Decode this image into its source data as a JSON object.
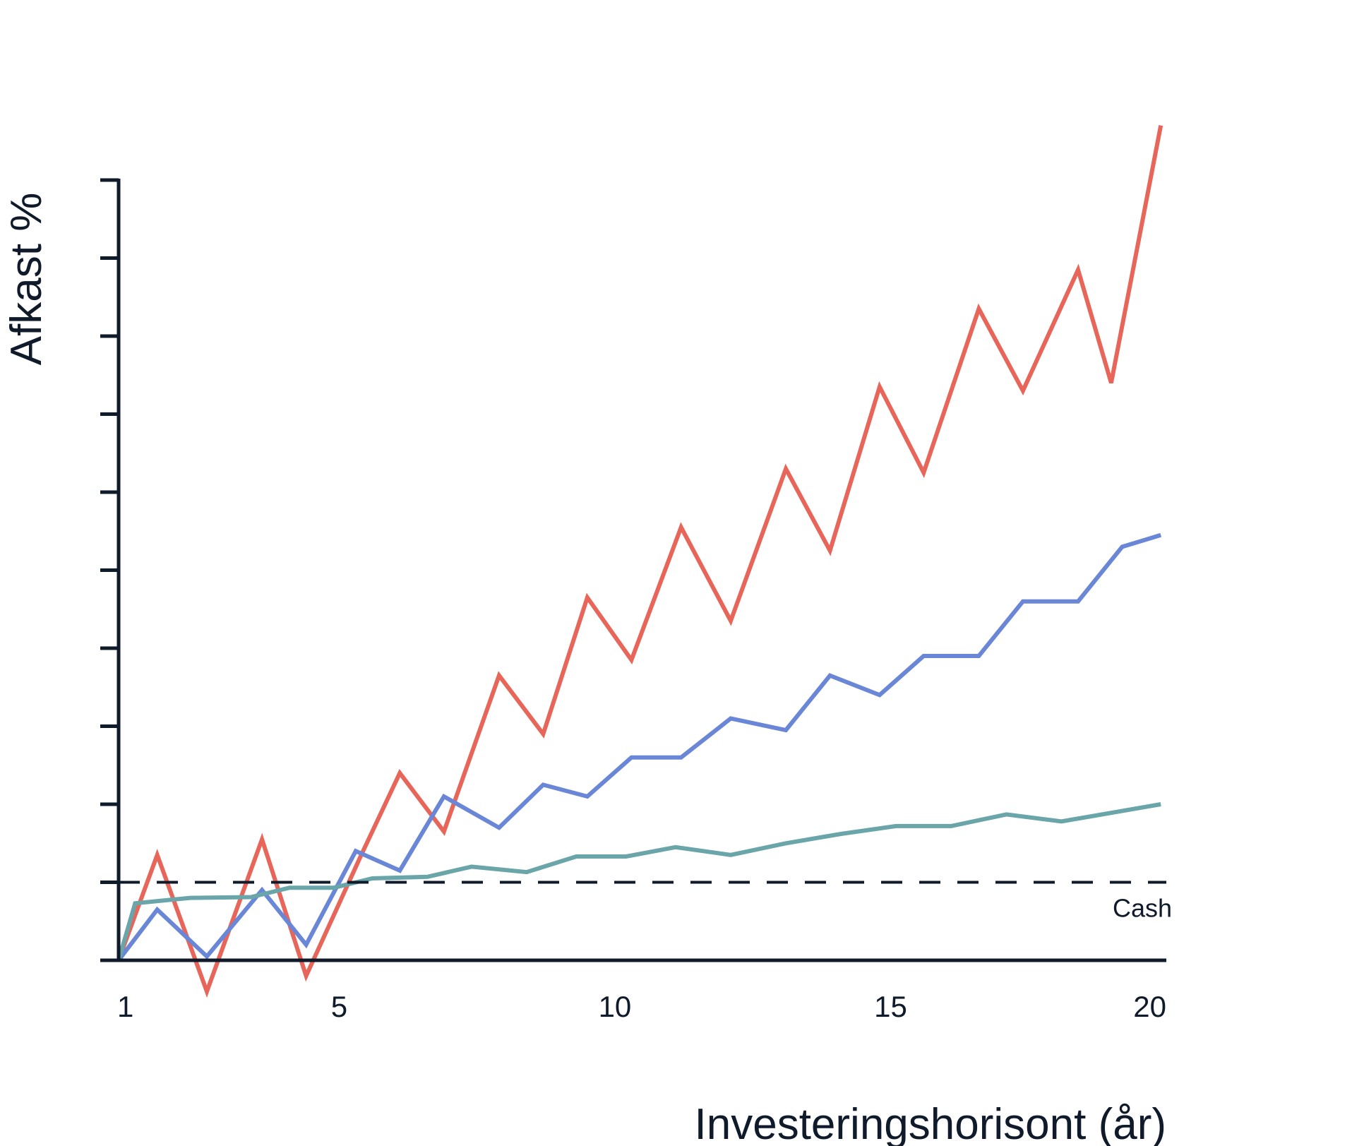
{
  "chart_data": {
    "type": "line",
    "ylabel": "Afkast %",
    "xlabel": "Investeringshorisont (år)",
    "xlim": [
      1,
      20
    ],
    "ylim": [
      0,
      10
    ],
    "y_ticks": [
      0,
      1,
      2,
      3,
      4,
      5,
      6,
      7,
      8,
      9,
      10
    ],
    "x_tick_labels": [
      {
        "x": 1,
        "label": "1"
      },
      {
        "x": 5,
        "label": "5"
      },
      {
        "x": 10,
        "label": "10"
      },
      {
        "x": 15,
        "label": "15"
      },
      {
        "x": 20,
        "label": "20"
      }
    ],
    "reference_line": {
      "label": "Cash",
      "y": 1.0,
      "style": "dashed"
    },
    "grid": false,
    "series": [
      {
        "color": "#e8655a",
        "points": [
          [
            1,
            0
          ],
          [
            1.7,
            1.35
          ],
          [
            2.6,
            -0.4
          ],
          [
            3.6,
            1.55
          ],
          [
            4.4,
            -0.2
          ],
          [
            5.4,
            1.35
          ],
          [
            6.1,
            2.4
          ],
          [
            6.9,
            1.65
          ],
          [
            7.9,
            3.65
          ],
          [
            8.7,
            2.9
          ],
          [
            9.5,
            4.65
          ],
          [
            10.3,
            3.85
          ],
          [
            11.2,
            5.55
          ],
          [
            12.1,
            4.35
          ],
          [
            13.1,
            6.3
          ],
          [
            13.9,
            5.25
          ],
          [
            14.8,
            7.35
          ],
          [
            15.6,
            6.25
          ],
          [
            16.6,
            8.35
          ],
          [
            17.4,
            7.3
          ],
          [
            18.4,
            8.85
          ],
          [
            19.0,
            7.4
          ],
          [
            19.9,
            10.7
          ]
        ]
      },
      {
        "color": "#6a86d6",
        "points": [
          [
            1,
            0
          ],
          [
            1.7,
            0.65
          ],
          [
            2.6,
            0.05
          ],
          [
            3.6,
            0.9
          ],
          [
            4.4,
            0.2
          ],
          [
            5.3,
            1.4
          ],
          [
            6.1,
            1.15
          ],
          [
            6.9,
            2.1
          ],
          [
            7.9,
            1.7
          ],
          [
            8.7,
            2.25
          ],
          [
            9.5,
            2.1
          ],
          [
            10.3,
            2.6
          ],
          [
            11.2,
            2.6
          ],
          [
            12.1,
            3.1
          ],
          [
            13.1,
            2.95
          ],
          [
            13.9,
            3.65
          ],
          [
            14.8,
            3.4
          ],
          [
            15.6,
            3.9
          ],
          [
            16.6,
            3.9
          ],
          [
            17.4,
            4.6
          ],
          [
            18.4,
            4.6
          ],
          [
            19.2,
            5.3
          ],
          [
            19.9,
            5.45
          ]
        ]
      },
      {
        "color": "#6aa6a9",
        "points": [
          [
            1,
            0
          ],
          [
            1.3,
            0.73
          ],
          [
            2.3,
            0.8
          ],
          [
            3.4,
            0.81
          ],
          [
            4.1,
            0.93
          ],
          [
            4.9,
            0.93
          ],
          [
            5.6,
            1.05
          ],
          [
            6.6,
            1.07
          ],
          [
            7.4,
            1.2
          ],
          [
            8.4,
            1.13
          ],
          [
            9.3,
            1.33
          ],
          [
            10.2,
            1.33
          ],
          [
            11.1,
            1.45
          ],
          [
            12.1,
            1.35
          ],
          [
            13.1,
            1.5
          ],
          [
            14.1,
            1.62
          ],
          [
            15.1,
            1.72
          ],
          [
            16.1,
            1.72
          ],
          [
            17.1,
            1.87
          ],
          [
            18.1,
            1.78
          ],
          [
            19.9,
            2.0
          ]
        ]
      }
    ]
  }
}
